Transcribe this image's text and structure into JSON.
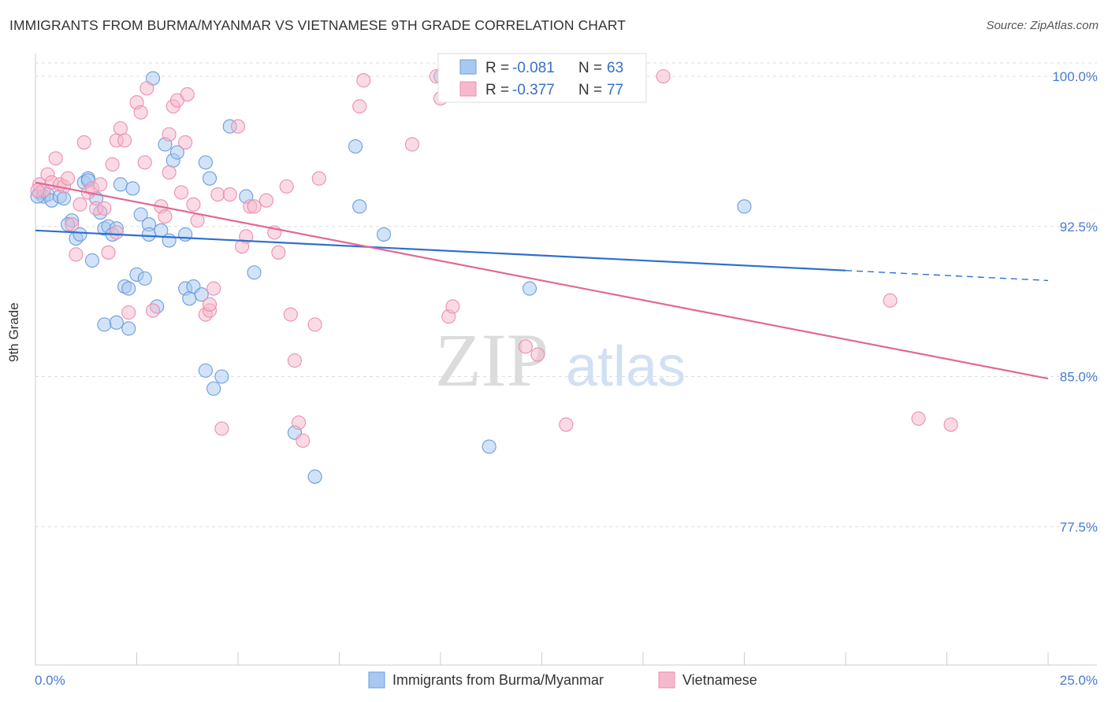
{
  "title": "IMMIGRANTS FROM BURMA/MYANMAR VS VIETNAMESE 9TH GRADE CORRELATION CHART",
  "source": "Source: ZipAtlas.com",
  "watermark": {
    "zip": "ZIP",
    "atlas": "atlas"
  },
  "colors": {
    "blue_fill": "#a8c8f0",
    "blue_stroke": "#6a9de0",
    "blue_line": "#2f6fce",
    "pink_fill": "#f6b8cc",
    "pink_stroke": "#ea8fae",
    "pink_line": "#e06896",
    "tick_text": "#4a7bd0",
    "grid": "#dddddd"
  },
  "legend": {
    "rows": [
      {
        "r_label": "R =",
        "r_value": "-0.081",
        "n_label": "N =",
        "n_value": "63",
        "color": "blue"
      },
      {
        "r_label": "R =",
        "r_value": "-0.377",
        "n_label": "N =",
        "n_value": "77",
        "color": "pink"
      }
    ]
  },
  "bottom_legend": [
    "Immigrants from Burma/Myanmar",
    "Vietnamese"
  ],
  "chart_data": {
    "type": "scatter",
    "title": "IMMIGRANTS FROM BURMA/MYANMAR VS VIETNAMESE 9TH GRADE CORRELATION CHART",
    "xlabel": "",
    "ylabel": "9th Grade",
    "xlim": [
      0,
      25
    ],
    "ylim": [
      70.0,
      101.5
    ],
    "x_tick_labels": [
      "0.0%",
      "25.0%"
    ],
    "y_ticks": [
      100.0,
      92.5,
      85.0,
      77.5
    ],
    "y_tick_labels": [
      "100.0%",
      "92.5%",
      "85.0%",
      "77.5%"
    ],
    "grid": "horizontal dashed",
    "legend_position": "top-center",
    "series": [
      {
        "name": "Immigrants from Burma/Myanmar",
        "color": "blue",
        "trend": {
          "x": [
            0,
            20
          ],
          "y": [
            92.3,
            90.3
          ],
          "dashed_extension_to_x": 25,
          "dashed_end_y": 89.8
        },
        "points": [
          [
            0.1,
            94.2
          ],
          [
            0.2,
            94.0
          ],
          [
            0.3,
            94.1
          ],
          [
            0.4,
            93.8
          ],
          [
            0.6,
            94.0
          ],
          [
            0.7,
            93.9
          ],
          [
            0.9,
            92.8
          ],
          [
            0.8,
            92.6
          ],
          [
            1.0,
            91.9
          ],
          [
            1.1,
            92.1
          ],
          [
            1.2,
            94.7
          ],
          [
            1.3,
            94.9
          ],
          [
            1.4,
            90.8
          ],
          [
            1.5,
            93.9
          ],
          [
            1.6,
            93.2
          ],
          [
            1.7,
            92.4
          ],
          [
            1.8,
            92.5
          ],
          [
            1.9,
            92.1
          ],
          [
            2.0,
            92.4
          ],
          [
            1.7,
            87.6
          ],
          [
            2.0,
            87.7
          ],
          [
            2.1,
            94.6
          ],
          [
            2.2,
            89.5
          ],
          [
            2.3,
            89.4
          ],
          [
            2.3,
            87.4
          ],
          [
            2.4,
            94.4
          ],
          [
            2.5,
            90.1
          ],
          [
            2.6,
            93.1
          ],
          [
            2.7,
            89.9
          ],
          [
            2.8,
            92.6
          ],
          [
            2.8,
            92.1
          ],
          [
            2.9,
            99.9
          ],
          [
            3.0,
            88.5
          ],
          [
            3.1,
            92.3
          ],
          [
            3.2,
            96.6
          ],
          [
            3.3,
            91.8
          ],
          [
            3.4,
            95.8
          ],
          [
            3.5,
            96.2
          ],
          [
            3.7,
            92.1
          ],
          [
            3.7,
            89.4
          ],
          [
            3.8,
            88.9
          ],
          [
            3.9,
            89.5
          ],
          [
            4.1,
            89.1
          ],
          [
            4.2,
            95.7
          ],
          [
            4.3,
            94.9
          ],
          [
            4.2,
            85.3
          ],
          [
            4.4,
            84.4
          ],
          [
            4.6,
            85.0
          ],
          [
            4.8,
            97.5
          ],
          [
            5.2,
            94.0
          ],
          [
            5.4,
            90.2
          ],
          [
            6.4,
            82.2
          ],
          [
            6.9,
            80.0
          ],
          [
            7.9,
            96.5
          ],
          [
            8.0,
            93.5
          ],
          [
            8.6,
            92.1
          ],
          [
            10.0,
            100.0
          ],
          [
            11.2,
            81.5
          ],
          [
            12.2,
            89.4
          ],
          [
            12.8,
            100.0
          ],
          [
            17.5,
            93.5
          ],
          [
            0.05,
            94.0
          ],
          [
            1.3,
            94.8
          ]
        ]
      },
      {
        "name": "Vietnamese",
        "color": "pink",
        "trend": {
          "x": [
            0,
            25
          ],
          "y": [
            94.7,
            84.9
          ]
        },
        "points": [
          [
            0.1,
            94.6
          ],
          [
            0.2,
            94.3
          ],
          [
            0.3,
            95.1
          ],
          [
            0.4,
            94.7
          ],
          [
            0.5,
            95.9
          ],
          [
            0.6,
            94.6
          ],
          [
            0.7,
            94.5
          ],
          [
            0.8,
            94.9
          ],
          [
            0.9,
            92.6
          ],
          [
            1.0,
            91.1
          ],
          [
            1.1,
            93.6
          ],
          [
            1.2,
            96.7
          ],
          [
            1.3,
            94.2
          ],
          [
            1.4,
            94.4
          ],
          [
            1.5,
            93.4
          ],
          [
            1.6,
            94.6
          ],
          [
            1.7,
            93.4
          ],
          [
            1.8,
            91.2
          ],
          [
            1.9,
            95.6
          ],
          [
            2.0,
            92.2
          ],
          [
            2.0,
            96.8
          ],
          [
            2.1,
            97.4
          ],
          [
            2.2,
            96.8
          ],
          [
            2.3,
            88.2
          ],
          [
            2.5,
            98.7
          ],
          [
            2.6,
            98.2
          ],
          [
            2.7,
            95.7
          ],
          [
            2.75,
            99.4
          ],
          [
            2.9,
            88.3
          ],
          [
            3.1,
            93.5
          ],
          [
            3.2,
            93.0
          ],
          [
            3.3,
            95.2
          ],
          [
            3.3,
            97.1
          ],
          [
            3.4,
            98.5
          ],
          [
            3.5,
            98.8
          ],
          [
            3.6,
            94.2
          ],
          [
            3.7,
            96.7
          ],
          [
            3.75,
            99.1
          ],
          [
            3.9,
            93.6
          ],
          [
            4.0,
            92.8
          ],
          [
            4.2,
            88.1
          ],
          [
            4.3,
            88.3
          ],
          [
            4.3,
            88.6
          ],
          [
            4.4,
            89.4
          ],
          [
            4.5,
            94.1
          ],
          [
            4.6,
            82.4
          ],
          [
            4.8,
            94.1
          ],
          [
            5.0,
            97.5
          ],
          [
            5.1,
            91.5
          ],
          [
            5.2,
            92.0
          ],
          [
            5.3,
            93.5
          ],
          [
            5.4,
            93.5
          ],
          [
            5.7,
            93.8
          ],
          [
            5.9,
            92.2
          ],
          [
            6.0,
            91.2
          ],
          [
            6.2,
            94.5
          ],
          [
            6.3,
            88.1
          ],
          [
            6.4,
            85.8
          ],
          [
            6.5,
            82.7
          ],
          [
            6.6,
            81.8
          ],
          [
            6.9,
            87.6
          ],
          [
            7.0,
            94.9
          ],
          [
            8.0,
            98.5
          ],
          [
            8.1,
            99.8
          ],
          [
            9.3,
            96.6
          ],
          [
            9.9,
            100.0
          ],
          [
            10.0,
            98.9
          ],
          [
            10.2,
            88.0
          ],
          [
            10.3,
            88.5
          ],
          [
            12.1,
            86.5
          ],
          [
            12.4,
            86.1
          ],
          [
            13.1,
            82.6
          ],
          [
            15.5,
            100.0
          ],
          [
            21.1,
            88.8
          ],
          [
            21.8,
            82.9
          ],
          [
            22.6,
            82.6
          ],
          [
            0.05,
            94.3
          ]
        ]
      }
    ]
  }
}
